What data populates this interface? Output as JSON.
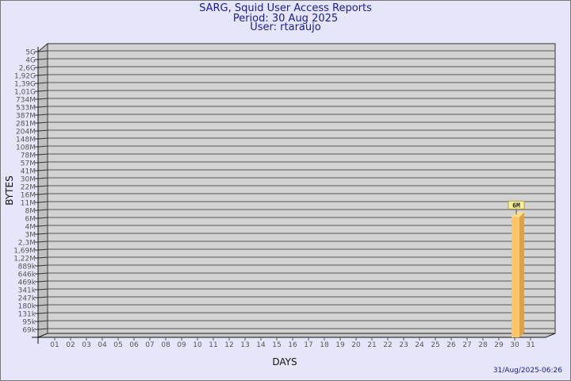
{
  "header": {
    "title": "SARG, Squid User Access Reports",
    "period": "Period: 30 Aug 2025",
    "user": "User: rtaraujo"
  },
  "footer": {
    "timestamp": "31/Aug/2025-06:26"
  },
  "chart_data": {
    "type": "bar",
    "xlabel": "DAYS",
    "ylabel": "BYTES",
    "categories": [
      "01",
      "02",
      "03",
      "04",
      "05",
      "06",
      "07",
      "08",
      "09",
      "10",
      "11",
      "12",
      "13",
      "14",
      "15",
      "16",
      "17",
      "18",
      "19",
      "20",
      "21",
      "22",
      "23",
      "24",
      "25",
      "26",
      "27",
      "28",
      "29",
      "30",
      "31"
    ],
    "y_tick_labels": [
      "5G",
      "4G",
      "2,6G",
      "1,92G",
      "1,39G",
      "1,01G",
      "734M",
      "533M",
      "387M",
      "281M",
      "204M",
      "148M",
      "108M",
      "78M",
      "57M",
      "41M",
      "30M",
      "22M",
      "16M",
      "11M",
      "8M",
      "6M",
      "4M",
      "3M",
      "2,3M",
      "1,69M",
      "1,22M",
      "889k",
      "646k",
      "469k",
      "341k",
      "247k",
      "180k",
      "131k",
      "95k",
      "69k"
    ],
    "y_scale": "log",
    "grid": true,
    "bars": [
      {
        "category": "30",
        "value_label": "6M",
        "value": 6000000
      }
    ],
    "colors": {
      "bar": "#ffc466",
      "bar_side": "#d9a24c",
      "wall": "#d3d3d3",
      "label_box": "#f5f0a0",
      "text": "#1a1a9a"
    }
  }
}
